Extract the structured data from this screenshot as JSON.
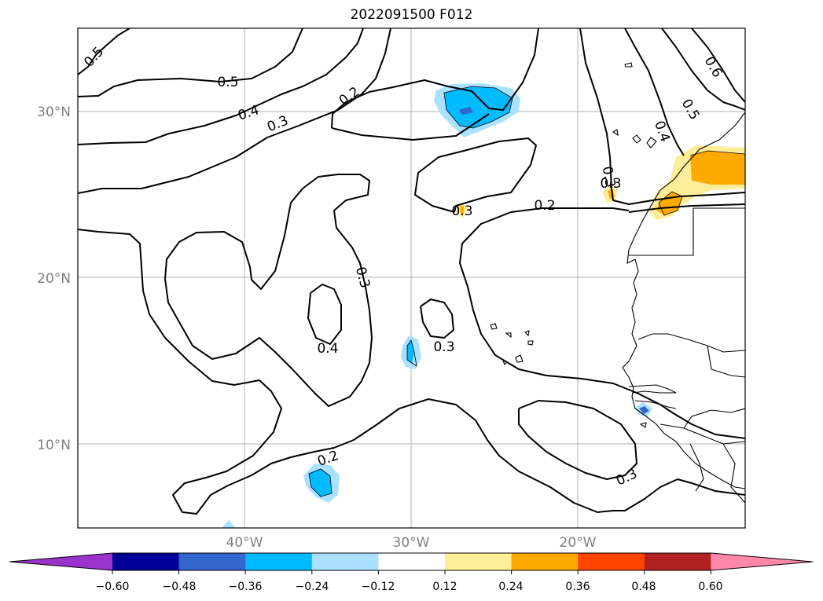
{
  "title": "2022091500 F012",
  "map": {
    "lat_labels": [
      "30°N",
      "20°N",
      "10°N"
    ],
    "lon_labels": [
      "40°W",
      "30°W",
      "20°W"
    ],
    "contour_labels": [
      "0.5",
      "0.5",
      "0.4",
      "0.3",
      "0.2",
      "0.3",
      "0.4",
      "0.3",
      "0.2",
      "0.3",
      "0.3",
      "0.4",
      "0.3",
      "0.2",
      "0.3",
      "0.5",
      "0.6"
    ]
  },
  "colorbar": {
    "ticks": [
      "−0.60",
      "−0.48",
      "−0.36",
      "−0.24",
      "−0.12",
      "0.12",
      "0.24",
      "0.36",
      "0.48",
      "0.60"
    ],
    "colors": [
      "#9933cc",
      "#000099",
      "#3366cc",
      "#00bbff",
      "#aae1ff",
      "#ffffff",
      "#ffee99",
      "#ffaa00",
      "#ff4400",
      "#b22222",
      "#ff88aa"
    ]
  }
}
